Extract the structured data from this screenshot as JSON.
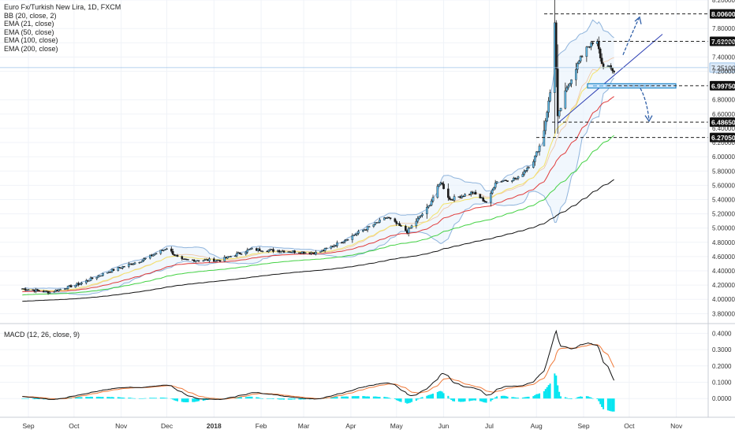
{
  "chart_data": {
    "type": "candlestick",
    "title": "Euro Fx/Turkish New Lira, 1D, FXCM",
    "indicators": [
      "BB (20, close, 2)",
      "EMA (21, close)",
      "EMA (50, close)",
      "EMA (100, close)",
      "EMA (200, close)"
    ],
    "macd_label": "MACD (12, 26, close, 9)",
    "ylim": [
      3.66,
      8.2
    ],
    "price_ticks": [
      "8.20000",
      "7.80000",
      "7.60000",
      "7.40000",
      "7.20000",
      "6.80000",
      "6.60000",
      "6.40000",
      "6.20000",
      "6.00000",
      "5.80000",
      "5.60000",
      "5.40000",
      "5.20000",
      "5.00000",
      "4.80000",
      "4.60000",
      "4.40000",
      "4.20000",
      "4.00000",
      "3.80000"
    ],
    "macd_ylim": [
      -0.115,
      0.46
    ],
    "macd_ticks": [
      "0.4000",
      "0.3000",
      "0.2000",
      "0.1000",
      "0.0000"
    ],
    "x_labels": [
      "Sep",
      "Oct",
      "Nov",
      "Dec",
      "2018",
      "Feb",
      "Mar",
      "Apr",
      "May",
      "Jun",
      "Jul",
      "Aug",
      "Sep",
      "Oct",
      "Nov"
    ],
    "level_lines": [
      {
        "label": "8.00600",
        "value": 8.006
      },
      {
        "label": "7.62000",
        "value": 7.62
      },
      {
        "label": "6.99750",
        "value": 6.9975
      },
      {
        "label": "6.48650",
        "value": 6.4865
      },
      {
        "label": "6.27050",
        "value": 6.2705
      }
    ],
    "current_price": {
      "label": "7.25100",
      "value": 7.251
    },
    "ohlc_keypoints": [
      [
        "2017-08-28",
        4.15
      ],
      [
        "2017-09-15",
        4.1
      ],
      [
        "2017-10-05",
        4.22
      ],
      [
        "2017-10-25",
        4.4
      ],
      [
        "2017-11-15",
        4.55
      ],
      [
        "2017-12-01",
        4.72
      ],
      [
        "2017-12-10",
        4.55
      ],
      [
        "2018-01-05",
        4.55
      ],
      [
        "2018-01-25",
        4.7
      ],
      [
        "2018-02-15",
        4.68
      ],
      [
        "2018-03-10",
        4.65
      ],
      [
        "2018-03-25",
        4.8
      ],
      [
        "2018-04-10",
        4.98
      ],
      [
        "2018-04-25",
        5.15
      ],
      [
        "2018-05-08",
        4.95
      ],
      [
        "2018-05-22",
        5.3
      ],
      [
        "2018-05-30",
        5.65
      ],
      [
        "2018-06-05",
        5.4
      ],
      [
        "2018-06-20",
        5.5
      ],
      [
        "2018-06-30",
        5.35
      ],
      [
        "2018-07-05",
        5.65
      ],
      [
        "2018-07-20",
        5.7
      ],
      [
        "2018-07-30",
        5.95
      ],
      [
        "2018-08-05",
        6.25
      ],
      [
        "2018-08-10",
        6.9
      ],
      [
        "2018-08-13",
        7.9
      ],
      [
        "2018-08-15",
        6.55
      ],
      [
        "2018-08-20",
        6.9
      ],
      [
        "2018-08-27",
        7.25
      ],
      [
        "2018-09-03",
        7.55
      ],
      [
        "2018-09-10",
        7.6
      ],
      [
        "2018-09-13",
        7.3
      ],
      [
        "2018-09-18",
        7.25
      ],
      [
        "2018-09-21",
        7.2
      ]
    ]
  }
}
